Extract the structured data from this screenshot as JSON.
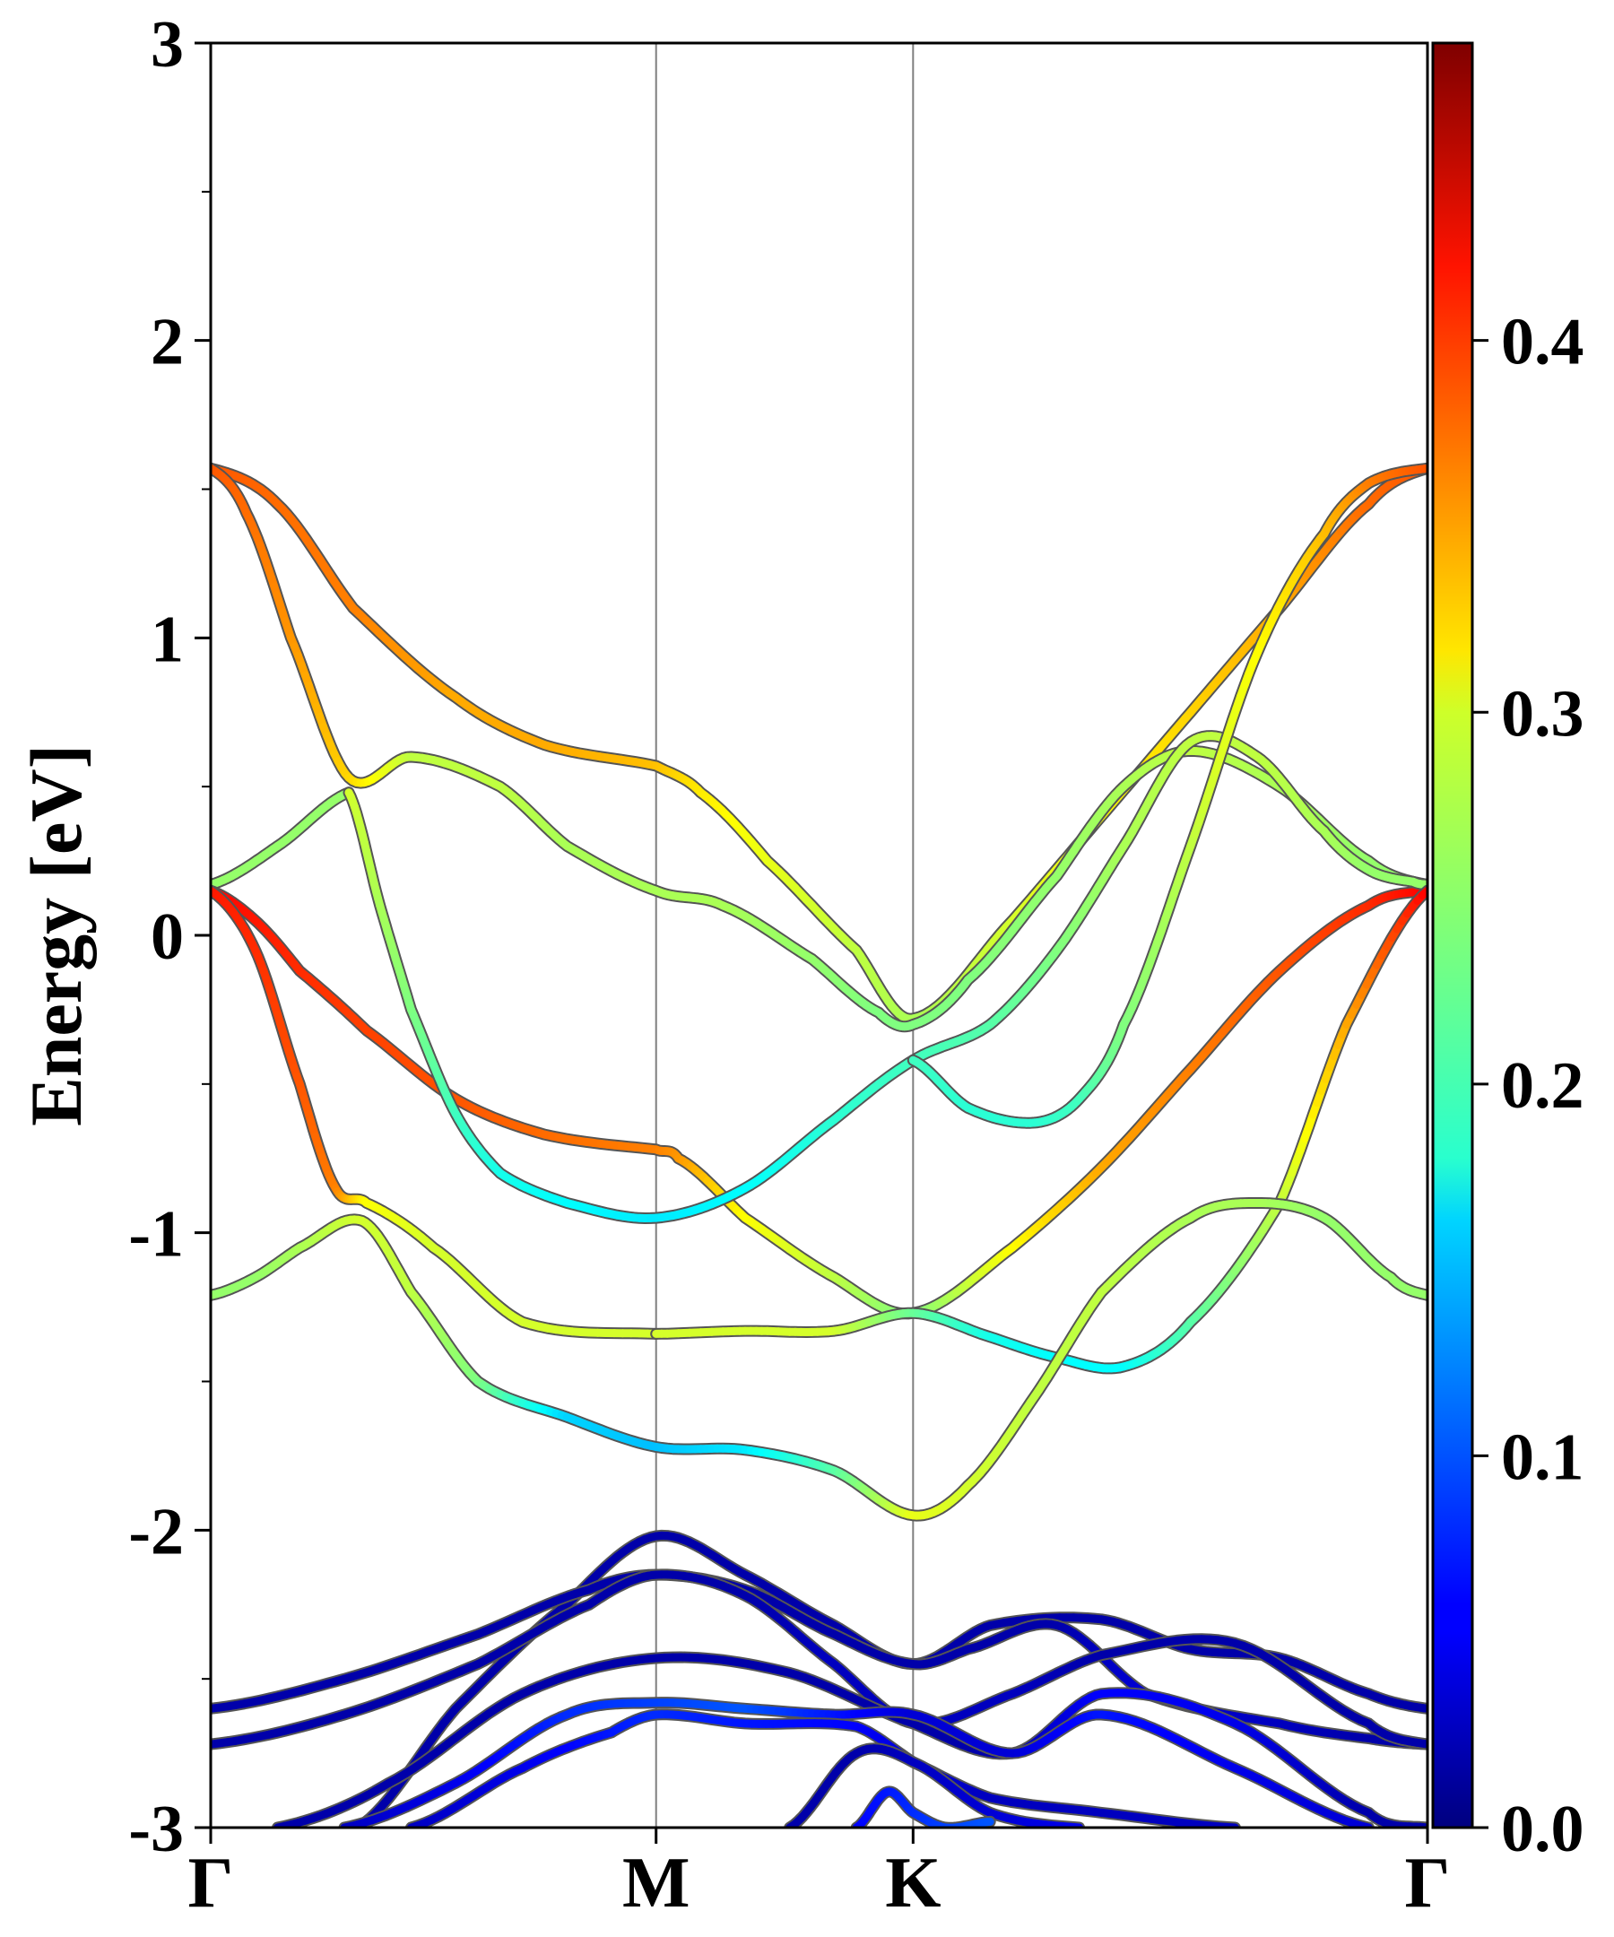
{
  "chart_data": {
    "type": "line",
    "title": "",
    "xlabel": "",
    "ylabel": "Energy [eV]",
    "ylim": [
      -3,
      3
    ],
    "y_ticks": [
      "-3",
      "-2",
      "-1",
      "0",
      "1",
      "2",
      "3"
    ],
    "k_path": {
      "labels": [
        "Γ",
        "M",
        "K",
        "Γ"
      ],
      "positions": [
        0,
        1.0,
        0.577,
        1.155
      ],
      "cumulative": [
        0,
        1.0,
        1.577,
        2.732
      ]
    },
    "colorbar": {
      "colormap": "jet",
      "range": [
        0.0,
        0.48
      ],
      "ticks": [
        "0.0",
        "0.1",
        "0.2",
        "0.3",
        "0.4"
      ],
      "tick_values": [
        0.0,
        0.1,
        0.2,
        0.3,
        0.4
      ]
    },
    "grid": false,
    "vertical_lines_at": [
      "M",
      "K"
    ],
    "series": [
      {
        "k": [
          0,
          0.15,
          0.32,
          0.55,
          0.75,
          1.0,
          1.1,
          1.25,
          1.45,
          1.577,
          1.8,
          2.0,
          2.2,
          2.4,
          2.6,
          2.732
        ],
        "e": [
          1.57,
          1.45,
          1.1,
          0.8,
          0.64,
          0.57,
          0.48,
          0.25,
          -0.05,
          -0.28,
          0.05,
          0.4,
          0.75,
          1.1,
          1.45,
          1.57
        ],
        "w": [
          0.38,
          0.37,
          0.36,
          0.34,
          0.34,
          0.33,
          0.31,
          0.29,
          0.27,
          0.26,
          0.28,
          0.3,
          0.32,
          0.34,
          0.37,
          0.38
        ]
      },
      {
        "k": [
          0,
          0.08,
          0.18,
          0.31,
          0.45,
          0.65,
          0.8,
          1.0,
          1.15,
          1.35,
          1.5,
          1.577,
          1.7,
          1.9,
          2.05,
          2.2,
          2.4,
          2.6,
          2.732
        ],
        "e": [
          1.57,
          1.42,
          1.0,
          0.53,
          0.6,
          0.5,
          0.3,
          0.15,
          0.1,
          -0.08,
          -0.26,
          -0.3,
          -0.15,
          0.2,
          0.5,
          0.62,
          0.5,
          0.25,
          0.17
        ],
        "w": [
          0.38,
          0.37,
          0.35,
          0.32,
          0.27,
          0.27,
          0.26,
          0.26,
          0.26,
          0.25,
          0.24,
          0.24,
          0.24,
          0.25,
          0.26,
          0.27,
          0.26,
          0.25,
          0.25
        ]
      },
      {
        "k": [
          0,
          0.15,
          0.31
        ],
        "e": [
          0.17,
          0.3,
          0.48
        ],
        "w": [
          0.25,
          0.25,
          0.25
        ]
      },
      {
        "k": [
          0,
          0.1,
          0.2,
          0.35,
          0.55,
          0.75,
          1.0,
          1.05,
          1.2,
          1.4,
          1.577,
          1.8,
          2.0,
          2.2,
          2.4,
          2.6,
          2.732
        ],
        "e": [
          0.15,
          0.05,
          -0.12,
          -0.32,
          -0.55,
          -0.67,
          -0.72,
          -0.75,
          -0.95,
          -1.15,
          -1.27,
          -1.05,
          -0.78,
          -0.45,
          -0.12,
          0.1,
          0.15
        ],
        "w": [
          0.42,
          0.41,
          0.4,
          0.39,
          0.38,
          0.37,
          0.36,
          0.35,
          0.3,
          0.27,
          0.24,
          0.3,
          0.34,
          0.36,
          0.38,
          0.4,
          0.42
        ]
      },
      {
        "k": [
          0.31,
          0.38,
          0.45,
          0.55,
          0.65,
          0.8,
          1.0,
          1.2,
          1.4,
          1.577,
          1.75,
          1.9,
          2.05,
          2.2,
          2.35,
          2.5,
          2.6,
          2.7,
          2.732
        ],
        "e": [
          0.48,
          0.1,
          -0.25,
          -0.6,
          -0.8,
          -0.9,
          -0.95,
          -0.85,
          -0.62,
          -0.42,
          -0.3,
          -0.05,
          0.3,
          0.65,
          0.6,
          0.35,
          0.22,
          0.18,
          0.17
        ],
        "w": [
          0.28,
          0.26,
          0.24,
          0.21,
          0.19,
          0.18,
          0.17,
          0.18,
          0.2,
          0.21,
          0.22,
          0.24,
          0.26,
          0.27,
          0.27,
          0.26,
          0.25,
          0.25,
          0.25
        ]
      },
      {
        "k": [
          1.577,
          1.7,
          1.85,
          1.95,
          2.05,
          2.2,
          2.35,
          2.5,
          2.6,
          2.732
        ],
        "e": [
          -0.42,
          -0.58,
          -0.63,
          -0.55,
          -0.3,
          0.3,
          0.95,
          1.35,
          1.52,
          1.57
        ],
        "w": [
          0.21,
          0.2,
          0.2,
          0.21,
          0.24,
          0.27,
          0.3,
          0.33,
          0.36,
          0.38
        ]
      },
      {
        "k": [
          0,
          0.1,
          0.2,
          0.28,
          0.35,
          0.5,
          0.7,
          1.0
        ],
        "e": [
          0.15,
          -0.05,
          -0.5,
          -0.85,
          -0.9,
          -1.05,
          -1.3,
          -1.34
        ],
        "w": [
          0.41,
          0.4,
          0.38,
          0.36,
          0.3,
          0.28,
          0.28,
          0.28
        ]
      },
      {
        "k": [
          1.0,
          1.2,
          1.4,
          1.577,
          1.75,
          1.9,
          2.05,
          2.2,
          2.4,
          2.55,
          2.732
        ],
        "e": [
          -1.34,
          -1.33,
          -1.33,
          -1.27,
          -1.35,
          -1.42,
          -1.45,
          -1.3,
          -0.9,
          -0.3,
          0.15
        ],
        "w": [
          0.28,
          0.28,
          0.28,
          0.23,
          0.19,
          0.18,
          0.18,
          0.22,
          0.27,
          0.34,
          0.42
        ]
      },
      {
        "k": [
          0,
          0.1,
          0.2,
          0.34,
          0.45,
          0.6,
          0.8,
          1.0,
          1.2,
          1.4,
          1.577,
          1.7,
          1.85,
          2.0,
          2.2,
          2.35,
          2.5,
          2.65,
          2.732
        ],
        "e": [
          -1.21,
          -1.15,
          -1.05,
          -0.96,
          -1.2,
          -1.5,
          -1.62,
          -1.72,
          -1.73,
          -1.8,
          -1.95,
          -1.85,
          -1.55,
          -1.2,
          -0.95,
          -0.9,
          -0.95,
          -1.15,
          -1.21
        ],
        "w": [
          0.25,
          0.25,
          0.26,
          0.28,
          0.27,
          0.24,
          0.16,
          0.15,
          0.17,
          0.22,
          0.29,
          0.28,
          0.27,
          0.27,
          0.26,
          0.26,
          0.25,
          0.25,
          0.25
        ]
      },
      {
        "k": [
          0.33,
          0.55,
          0.8,
          1.0,
          1.2,
          1.4,
          1.577,
          1.75,
          2.0,
          2.2,
          2.4,
          2.6,
          2.732
        ],
        "e": [
          -3.0,
          -2.6,
          -2.25,
          -2.02,
          -2.15,
          -2.32,
          -2.45,
          -2.32,
          -2.3,
          -2.4,
          -2.43,
          -2.55,
          -2.6
        ],
        "w": [
          0.02,
          0.02,
          0.02,
          0.02,
          0.02,
          0.02,
          0.02,
          0.02,
          0.02,
          0.02,
          0.02,
          0.02,
          0.02
        ]
      },
      {
        "k": [
          0,
          0.3,
          0.6,
          0.85,
          1.0,
          1.2,
          1.4,
          1.577,
          1.7,
          1.9,
          2.1,
          2.4,
          2.6,
          2.732
        ],
        "e": [
          -2.6,
          -2.5,
          -2.35,
          -2.2,
          -2.15,
          -2.2,
          -2.35,
          -2.45,
          -2.4,
          -2.32,
          -2.55,
          -2.65,
          -2.7,
          -2.72
        ],
        "w": [
          0.02,
          0.02,
          0.02,
          0.02,
          0.02,
          0.02,
          0.02,
          0.02,
          0.02,
          0.02,
          0.04,
          0.03,
          0.02,
          0.02
        ]
      },
      {
        "k": [
          0,
          0.3,
          0.6,
          0.85,
          1.0,
          1.2,
          1.4,
          1.577,
          1.8,
          2.0,
          2.3,
          2.6,
          2.732
        ],
        "e": [
          -2.72,
          -2.62,
          -2.45,
          -2.25,
          -2.15,
          -2.22,
          -2.45,
          -2.65,
          -2.55,
          -2.42,
          -2.38,
          -2.65,
          -2.72
        ],
        "w": [
          0.02,
          0.02,
          0.02,
          0.02,
          0.02,
          0.02,
          0.03,
          0.03,
          0.03,
          0.02,
          0.02,
          0.02,
          0.02
        ]
      },
      {
        "k": [
          0.15,
          0.4,
          0.7,
          1.0,
          1.3,
          1.577,
          1.8,
          2.0,
          2.3,
          2.6,
          2.732
        ],
        "e": [
          -3.0,
          -2.85,
          -2.55,
          -2.43,
          -2.48,
          -2.65,
          -2.75,
          -2.55,
          -2.65,
          -2.95,
          -3.0
        ],
        "w": [
          0.02,
          0.02,
          0.02,
          0.02,
          0.02,
          0.02,
          0.02,
          0.06,
          0.05,
          0.02,
          0.02
        ]
      },
      {
        "k": [
          0.3,
          0.55,
          0.8,
          1.0,
          1.2,
          1.4,
          1.577,
          1.8,
          2.0,
          2.3,
          2.6
        ],
        "e": [
          -3.0,
          -2.85,
          -2.62,
          -2.58,
          -2.6,
          -2.62,
          -2.62,
          -2.75,
          -2.62,
          -2.8,
          -3.0
        ],
        "w": [
          0.03,
          0.05,
          0.08,
          0.09,
          0.1,
          0.07,
          0.04,
          0.04,
          0.07,
          0.05,
          0.04
        ]
      },
      {
        "k": [
          0.45,
          0.7,
          0.9,
          1.0,
          1.2,
          1.45,
          1.577,
          1.75,
          2.0,
          2.3
        ],
        "e": [
          -3.0,
          -2.8,
          -2.68,
          -2.62,
          -2.65,
          -2.66,
          -2.78,
          -2.9,
          -2.95,
          -3.0
        ],
        "w": [
          0.03,
          0.05,
          0.07,
          0.08,
          0.07,
          0.06,
          0.04,
          0.03,
          0.03,
          0.03
        ]
      },
      {
        "k": [
          1.3,
          1.45,
          1.577,
          1.75,
          1.95
        ],
        "e": [
          -3.0,
          -2.75,
          -2.78,
          -2.95,
          -3.0
        ],
        "w": [
          0.02,
          0.02,
          0.03,
          0.04,
          0.05
        ]
      },
      {
        "k": [
          1.45,
          1.52,
          1.577,
          1.65,
          1.75
        ],
        "e": [
          -3.0,
          -2.88,
          -2.95,
          -3.0,
          -2.98
        ],
        "w": [
          0.06,
          0.07,
          0.08,
          0.09,
          0.1
        ]
      }
    ]
  }
}
